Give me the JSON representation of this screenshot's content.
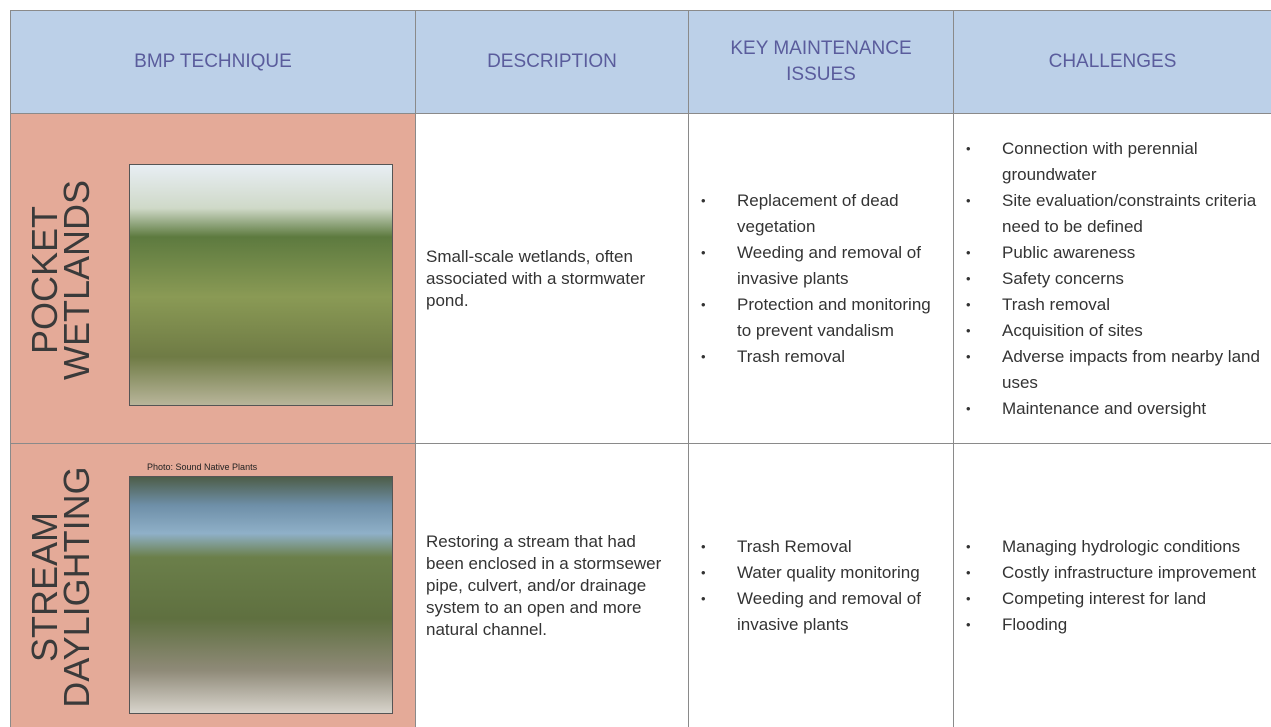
{
  "table": {
    "headers": [
      "BMP TECHNIQUE",
      "DESCRIPTION",
      "KEY MAINTENANCE ISSUES",
      "CHALLENGES"
    ],
    "rows": [
      {
        "technique": [
          "POCKET",
          "WETLANDS"
        ],
        "description": "Small-scale wetlands, often associated with a stormwater pond.",
        "maintenance": [
          "Replacement of dead vegetation",
          "Weeding and removal of invasive plants",
          "Protection and monitoring to prevent vandalism",
          "Trash removal"
        ],
        "challenges": [
          "Connection with perennial groundwater",
          "Site evaluation/constraints criteria need to be defined",
          "Public awareness",
          "Safety concerns",
          "Trash removal",
          "Acquisition of sites",
          "Adverse impacts from nearby land uses",
          "Maintenance and oversight"
        ]
      },
      {
        "technique": [
          "STREAM",
          "DAYLIGHTING"
        ],
        "photo_credit": "Photo: Sound Native Plants",
        "description": "Restoring a stream that had been enclosed in a stormsewer pipe, culvert, and/or drainage system to an open and more natural channel.",
        "maintenance": [
          "Trash Removal",
          "Water quality monitoring",
          "Weeding and removal of invasive plants"
        ],
        "challenges": [
          "Managing hydrologic conditions",
          "Costly infrastructure improvement",
          "Competing interest for land",
          "Flooding"
        ]
      }
    ]
  }
}
